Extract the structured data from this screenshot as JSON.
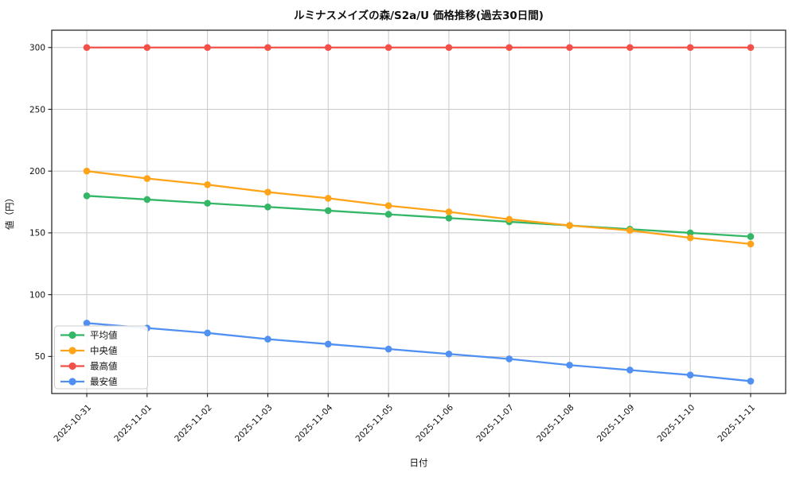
{
  "chart_data": {
    "type": "line",
    "title": "ルミナスメイズの森/S2a/U 価格推移(過去30日間)",
    "xlabel": "日付",
    "ylabel": "値（円）",
    "x": [
      "2025-10-31",
      "2025-11-01",
      "2025-11-02",
      "2025-11-03",
      "2025-11-04",
      "2025-11-05",
      "2025-11-06",
      "2025-11-07",
      "2025-11-08",
      "2025-11-09",
      "2025-11-10",
      "2025-11-11"
    ],
    "series": [
      {
        "name": "平均値",
        "color": "#33b766",
        "values": [
          180,
          177,
          174,
          171,
          168,
          165,
          162,
          159,
          156,
          153,
          150,
          147
        ]
      },
      {
        "name": "中央値",
        "color": "#ffa318",
        "values": [
          200,
          194,
          189,
          183,
          178,
          172,
          167,
          161,
          156,
          152,
          146,
          141
        ]
      },
      {
        "name": "最高値",
        "color": "#f25049",
        "values": [
          300,
          300,
          300,
          300,
          300,
          300,
          300,
          300,
          300,
          300,
          300,
          300
        ]
      },
      {
        "name": "最安値",
        "color": "#4f90f2",
        "values": [
          77,
          73,
          69,
          64,
          60,
          56,
          52,
          48,
          43,
          39,
          35,
          30
        ]
      }
    ],
    "ylim": [
      20,
      314
    ],
    "yticks": [
      50,
      100,
      150,
      200,
      250,
      300
    ],
    "grid": true,
    "legend_position": "lower left",
    "line_width": 2.3,
    "marker_radius": 4.3
  }
}
